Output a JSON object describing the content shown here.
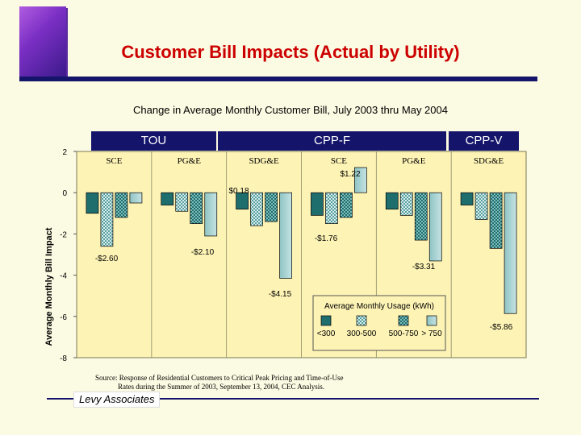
{
  "header": {
    "title": "Customer Bill Impacts (Actual by Utility)",
    "subtitle": "Change in Average Monthly Customer Bill, July 2003 thru May 2004"
  },
  "rate_bands": [
    "TOU",
    "CPP-F",
    "CPP-V"
  ],
  "footer": {
    "source_line1": "Source:   Response of Residential Customers to Critical Peak Pricing and Time-of-Use",
    "source_line2": "Rates during the Summer of 2003, September 13, 2004, CEC Analysis.",
    "company": "Levy Associates"
  },
  "colors": {
    "background": "#fbfae2",
    "plot_bg": "#fdf3b5",
    "band": "#14146b",
    "title": "#cc0000",
    "series": [
      "#1f6e6e",
      "#a9d4d4",
      "#1f6e6e",
      "#a9d4d4"
    ]
  },
  "chart_data": {
    "type": "bar",
    "title": "Change in Average Monthly Customer Bill, July 2003 thru May 2004",
    "ylabel": "Average Monthly Bill Impact",
    "ylim": [
      -8,
      2
    ],
    "yticks": [
      2,
      0,
      -2,
      -4,
      -6,
      -8
    ],
    "categories": [
      "SCE",
      "PG&E",
      "SDG&E",
      "SCE",
      "PG&E",
      "SDG&E"
    ],
    "category_groups": [
      "TOU",
      "TOU",
      "CPP-F",
      "CPP-F",
      "CPP-F",
      "CPP-V"
    ],
    "legend": {
      "title": "Average Monthly Usage (kWh)",
      "position": "bottom-right"
    },
    "series": [
      {
        "name": "<300",
        "pattern": "solid-dark",
        "values": [
          -1.0,
          -0.6,
          -0.8,
          -1.1,
          -0.8,
          -0.6
        ]
      },
      {
        "name": "300-500",
        "pattern": "checker",
        "values": [
          -2.6,
          -0.9,
          -1.6,
          -1.5,
          -1.1,
          -1.3
        ]
      },
      {
        "name": "500-750",
        "pattern": "checker-dark",
        "values": [
          -1.2,
          -1.5,
          -1.4,
          -1.2,
          -2.3,
          -2.7
        ]
      },
      {
        "name": "> 750",
        "pattern": "light",
        "values": [
          -0.5,
          -2.1,
          -4.15,
          1.22,
          -3.31,
          -5.86
        ]
      }
    ],
    "annotations": [
      {
        "text": "-$2.60",
        "x": "SCE (TOU)",
        "y": -2.6
      },
      {
        "text": "-$2.10",
        "x": "PG&E (TOU)",
        "y": -2.1
      },
      {
        "text": "$0.18",
        "x": "SDG&E (CPP-F)",
        "y": 0.18
      },
      {
        "text": "-$4.15",
        "x": "SDG&E (CPP-F)",
        "y": -4.15
      },
      {
        "text": "$1.22",
        "x": "SCE (CPP-F)",
        "y": 1.22
      },
      {
        "text": "-$1.76",
        "x": "SCE (CPP-F)",
        "y": -1.76
      },
      {
        "text": "-$3.31",
        "x": "PG&E (CPP-F)",
        "y": -3.31
      },
      {
        "text": "-$5.86",
        "x": "SDG&E (CPP-V)",
        "y": -5.86
      }
    ]
  }
}
